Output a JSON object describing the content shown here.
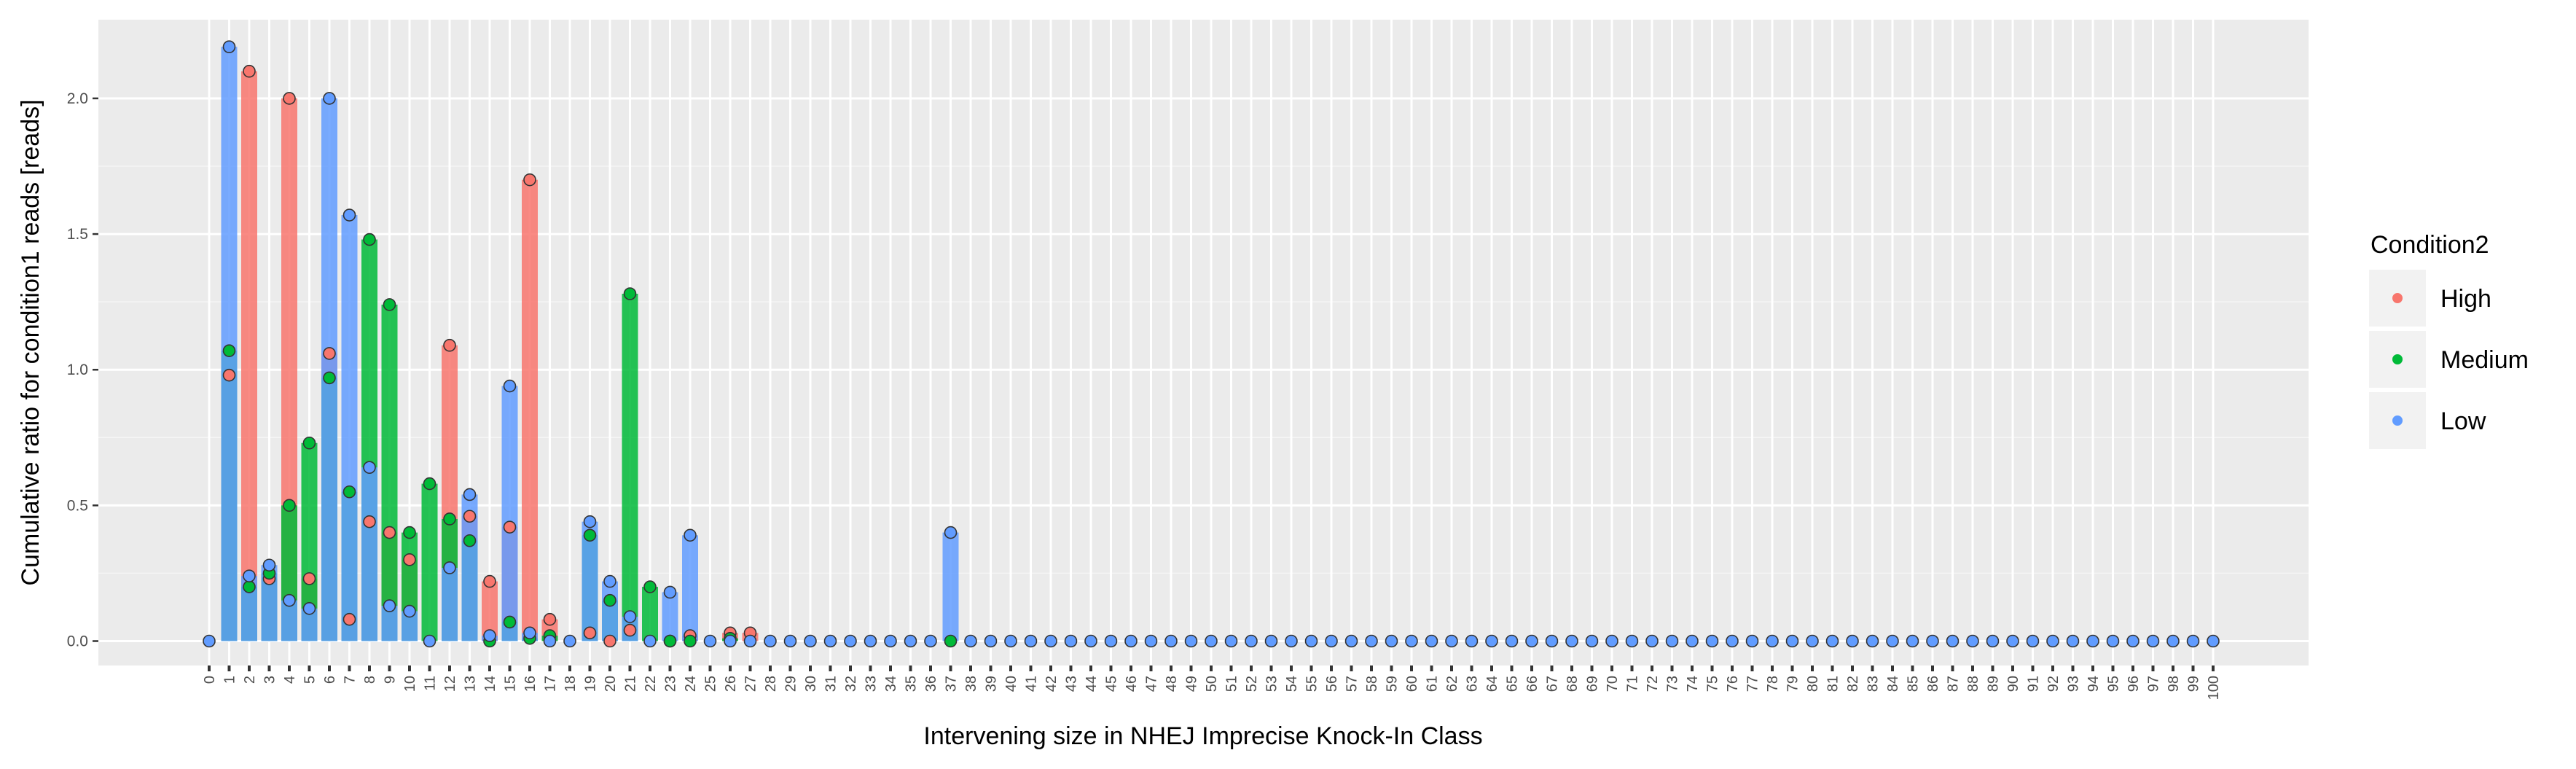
{
  "chart_data": {
    "type": "bar",
    "title": "",
    "xlabel": "Intervening size in NHEJ Imprecise Knock-In Class",
    "ylabel": "Cumulative ratio for condition1 reads [reads]",
    "x_categories": [
      "0",
      "1",
      "2",
      "3",
      "4",
      "5",
      "6",
      "7",
      "8",
      "9",
      "10",
      "11",
      "12",
      "13",
      "14",
      "15",
      "16",
      "17",
      "18",
      "19",
      "20",
      "21",
      "22",
      "23",
      "24",
      "25",
      "26",
      "27",
      "28",
      "29",
      "30",
      "31",
      "32",
      "33",
      "34",
      "35",
      "36",
      "37",
      "38",
      "39",
      "40",
      "41",
      "42",
      "43",
      "44",
      "45",
      "46",
      "47",
      "48",
      "49",
      "50",
      "51",
      "52",
      "53",
      "54",
      "55",
      "56",
      "57",
      "58",
      "59",
      "60",
      "61",
      "62",
      "63",
      "64",
      "65",
      "66",
      "67",
      "68",
      "69",
      "70",
      "71",
      "72",
      "73",
      "74",
      "75",
      "76",
      "77",
      "78",
      "79",
      "80",
      "81",
      "82",
      "83",
      "84",
      "85",
      "86",
      "87",
      "88",
      "89",
      "90",
      "91",
      "92",
      "93",
      "94",
      "95",
      "96",
      "97",
      "98",
      "99",
      "100"
    ],
    "y_ticks": [
      "0.0",
      "0.5",
      "1.0",
      "1.5",
      "2.0"
    ],
    "ylim": [
      -0.09,
      2.29
    ],
    "grid": true,
    "legend": {
      "title": "Condition2",
      "position": "right",
      "entries": [
        "High",
        "Medium",
        "Low"
      ]
    },
    "series": [
      {
        "name": "High",
        "color": "#F8766D",
        "x": [
          1,
          2,
          3,
          4,
          5,
          6,
          7,
          8,
          9,
          10,
          12,
          13,
          14,
          15,
          16,
          17,
          19,
          20,
          21,
          23,
          24,
          26,
          27
        ],
        "values": [
          0.98,
          2.1,
          0.23,
          2.0,
          0.23,
          1.06,
          0.08,
          0.44,
          0.4,
          0.3,
          1.09,
          0.46,
          0.22,
          0.42,
          1.7,
          0.08,
          0.03,
          0.0,
          0.04,
          0.0,
          0.02,
          0.03,
          0.03
        ]
      },
      {
        "name": "Medium",
        "color": "#00BA38",
        "x": [
          1,
          2,
          3,
          4,
          5,
          6,
          7,
          8,
          9,
          10,
          11,
          12,
          13,
          14,
          15,
          16,
          17,
          19,
          20,
          21,
          22,
          23,
          24,
          26,
          37
        ],
        "values": [
          1.07,
          0.2,
          0.25,
          0.5,
          0.73,
          0.97,
          0.55,
          1.48,
          1.24,
          0.4,
          0.58,
          0.45,
          0.37,
          0.0,
          0.07,
          0.01,
          0.02,
          0.39,
          0.15,
          1.28,
          0.2,
          0.0,
          0.0,
          0.01,
          0.0
        ]
      },
      {
        "name": "Low",
        "color": "#619CFF",
        "x": [
          0,
          1,
          2,
          3,
          4,
          5,
          6,
          7,
          8,
          9,
          10,
          11,
          12,
          13,
          14,
          15,
          16,
          17,
          18,
          19,
          20,
          21,
          22,
          23,
          24,
          25,
          26,
          27,
          28,
          29,
          30,
          31,
          32,
          33,
          34,
          35,
          36,
          37,
          38,
          39,
          40,
          41,
          42,
          43,
          44,
          45,
          46,
          47,
          48,
          49,
          50,
          51,
          52,
          53,
          54,
          55,
          56,
          57,
          58,
          59,
          60,
          61,
          62,
          63,
          64,
          65,
          66,
          67,
          68,
          69,
          70,
          71,
          72,
          73,
          74,
          75,
          76,
          77,
          78,
          79,
          80,
          81,
          82,
          83,
          84,
          85,
          86,
          87,
          88,
          89,
          90,
          91,
          92,
          93,
          94,
          95,
          96,
          97,
          98,
          99,
          100
        ],
        "values": [
          0.0,
          2.19,
          0.24,
          0.28,
          0.15,
          0.12,
          2.0,
          1.57,
          0.64,
          0.13,
          0.11,
          0.0,
          0.27,
          0.54,
          0.02,
          0.94,
          0.03,
          0.0,
          0.0,
          0.44,
          0.22,
          0.09,
          0.0,
          0.18,
          0.39,
          0.0,
          0.0,
          0.0,
          0.0,
          0.0,
          0.0,
          0.0,
          0.0,
          0.0,
          0.0,
          0.0,
          0.0,
          0.4,
          0.0,
          0.0,
          0.0,
          0.0,
          0.0,
          0.0,
          0.0,
          0.0,
          0.0,
          0.0,
          0.0,
          0.0,
          0.0,
          0.0,
          0.0,
          0.0,
          0.0,
          0.0,
          0.0,
          0.0,
          0.0,
          0.0,
          0.0,
          0.0,
          0.0,
          0.0,
          0.0,
          0.0,
          0.0,
          0.0,
          0.0,
          0.0,
          0.0,
          0.0,
          0.0,
          0.0,
          0.0,
          0.0,
          0.0,
          0.0,
          0.0,
          0.0,
          0.0,
          0.0,
          0.0,
          0.0,
          0.0,
          0.0,
          0.0,
          0.0,
          0.0,
          0.0,
          0.0,
          0.0,
          0.0,
          0.0,
          0.0,
          0.0,
          0.0,
          0.0,
          0.0,
          0.0,
          0.0
        ]
      }
    ]
  }
}
